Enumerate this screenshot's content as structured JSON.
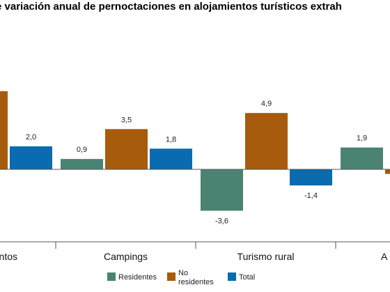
{
  "chart_data": {
    "type": "bar",
    "title": "e variación anual de pernoctaciones en alojamientos turísticos extrah",
    "categories": [
      "ntos",
      "Campings",
      "Turismo rural",
      "A"
    ],
    "series": [
      {
        "name": "Residentes",
        "values": [
          null,
          0.9,
          -3.6,
          1.9
        ]
      },
      {
        "name": "No residentes",
        "values": [
          null,
          3.5,
          4.9,
          -0.4
        ]
      },
      {
        "name": "Total",
        "values": [
          2.0,
          1.8,
          -1.4,
          null
        ]
      }
    ],
    "partial_bar": {
      "category_index": 0,
      "series_index": 1,
      "value": 6.8
    },
    "value_labels": [
      [
        "",
        "",
        "2,0"
      ],
      [
        "0,9",
        "3,5",
        "1,8"
      ],
      [
        "-3,6",
        "4,9",
        "-1,4"
      ],
      [
        "1,9",
        "",
        ""
      ]
    ],
    "colors": {
      "Residentes": "#4a8273",
      "No residentes": "#a65b0d",
      "Total": "#0a6bb0"
    },
    "legend": {
      "placement": "bottom",
      "items": [
        {
          "key": "Residentes",
          "lines": [
            "Residentes"
          ]
        },
        {
          "key": "No residentes",
          "lines": [
            "No",
            "residentes"
          ]
        },
        {
          "key": "Total",
          "lines": [
            "Total"
          ]
        }
      ]
    },
    "grid": false
  }
}
